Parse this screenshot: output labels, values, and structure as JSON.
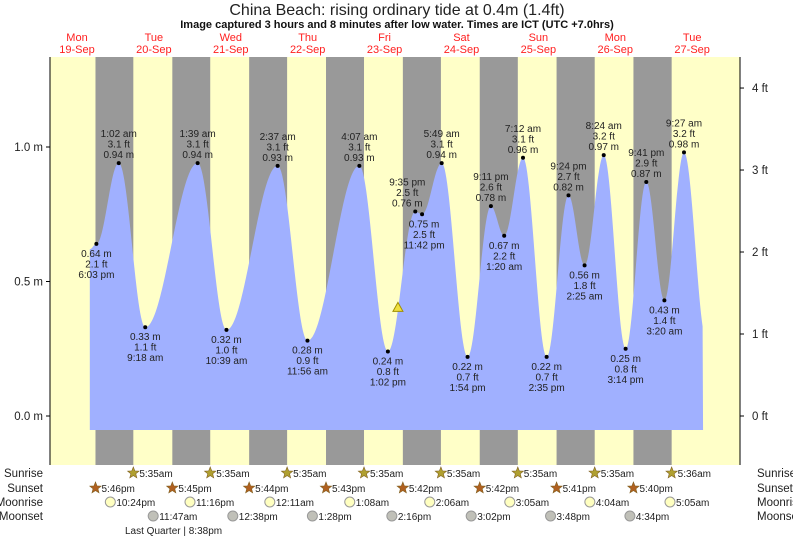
{
  "colors": {
    "day": "#ffffc8",
    "night": "#999999",
    "water": "#a0b0ff",
    "dayLabel": "#ff2020",
    "sun": "#b0a030",
    "sunset": "#b06020",
    "moonrise": "#ffffc0",
    "moonset": "#c0c0b8"
  },
  "chart_data": {
    "type": "area",
    "title": "China Beach: rising  ordinary tide at 0.4m (1.4ft)",
    "subtitle": "Image captured 3 hours and 8 minutes after low water. Times are ICT (UTC +7.0hrs)",
    "x_unit": "hours since Mon 19-Sep 00:00",
    "ylim_m": [
      -0.05,
      1.3
    ],
    "yticks_m": [
      {
        "v": 0,
        "label": "0.0 m"
      },
      {
        "v": 0.5,
        "label": "0.5 m"
      },
      {
        "v": 1.0,
        "label": "1.0 m"
      }
    ],
    "yticks_ft": [
      {
        "v": 0,
        "label": "0 ft"
      },
      {
        "v": 1,
        "label": "1 ft"
      },
      {
        "v": 2,
        "label": "2 ft"
      },
      {
        "v": 3,
        "label": "3 ft"
      },
      {
        "v": 4,
        "label": "4 ft"
      }
    ],
    "days": [
      {
        "day": "Mon",
        "date": "19-Sep"
      },
      {
        "day": "Tue",
        "date": "20-Sep"
      },
      {
        "day": "Wed",
        "date": "21-Sep"
      },
      {
        "day": "Thu",
        "date": "22-Sep"
      },
      {
        "day": "Fri",
        "date": "23-Sep"
      },
      {
        "day": "Sat",
        "date": "24-Sep"
      },
      {
        "day": "Sun",
        "date": "25-Sep"
      },
      {
        "day": "Mon",
        "date": "26-Sep"
      },
      {
        "day": "Tue",
        "date": "27-Sep"
      }
    ],
    "tides": [
      {
        "t": 18.05,
        "type": "start",
        "time": "6:03 pm",
        "ft": "2.1 ft",
        "m": "0.64 m",
        "v": 0.64
      },
      {
        "t": 25.03,
        "type": "high",
        "time": "1:02 am",
        "ft": "3.1 ft",
        "m": "0.94 m",
        "v": 0.94
      },
      {
        "t": 33.3,
        "type": "low",
        "time": "9:18 am",
        "ft": "1.1 ft",
        "m": "0.33 m",
        "v": 0.33
      },
      {
        "t": 49.65,
        "type": "high",
        "time": "1:39 am",
        "ft": "3.1 ft",
        "m": "0.94 m",
        "v": 0.94
      },
      {
        "t": 58.65,
        "type": "low",
        "time": "10:39 am",
        "ft": "1.0 ft",
        "m": "0.32 m",
        "v": 0.32
      },
      {
        "t": 74.62,
        "type": "high",
        "time": "2:37 am",
        "ft": "3.1 ft",
        "m": "0.93 m",
        "v": 0.93
      },
      {
        "t": 83.93,
        "type": "low",
        "time": "11:56 am",
        "ft": "0.9 ft",
        "m": "0.28 m",
        "v": 0.28
      },
      {
        "t": 100.12,
        "type": "high",
        "time": "4:07 am",
        "ft": "3.1 ft",
        "m": "0.93 m",
        "v": 0.93
      },
      {
        "t": 109.03,
        "type": "low",
        "time": "1:02 pm",
        "ft": "0.8 ft",
        "m": "0.24 m",
        "v": 0.24
      },
      {
        "t": 117.58,
        "type": "high",
        "time": "9:35 pm",
        "ft": "2.5 ft",
        "m": "0.76 m",
        "v": 0.76
      },
      {
        "t": 119.7,
        "type": "low",
        "time": "11:42 pm",
        "ft": "2.5 ft",
        "m": "0.75 m",
        "v": 0.75
      },
      {
        "t": 125.82,
        "type": "high",
        "time": "5:49 am",
        "ft": "3.1 ft",
        "m": "0.94 m",
        "v": 0.94
      },
      {
        "t": 133.9,
        "type": "low",
        "time": "1:54 pm",
        "ft": "0.7 ft",
        "m": "0.22 m",
        "v": 0.22
      },
      {
        "t": 141.18,
        "type": "high",
        "time": "9:11 pm",
        "ft": "2.6 ft",
        "m": "0.78 m",
        "v": 0.78
      },
      {
        "t": 145.33,
        "type": "low",
        "time": "1:20 am",
        "ft": "2.2 ft",
        "m": "0.67 m",
        "v": 0.67
      },
      {
        "t": 151.2,
        "type": "high",
        "time": "7:12 am",
        "ft": "3.1 ft",
        "m": "0.96 m",
        "v": 0.96
      },
      {
        "t": 158.58,
        "type": "low",
        "time": "2:35 pm",
        "ft": "0.7 ft",
        "m": "0.22 m",
        "v": 0.22
      },
      {
        "t": 165.4,
        "type": "high",
        "time": "9:24 pm",
        "ft": "2.7 ft",
        "m": "0.82 m",
        "v": 0.82
      },
      {
        "t": 170.42,
        "type": "low",
        "time": "2:25 am",
        "ft": "1.8 ft",
        "m": "0.56 m",
        "v": 0.56
      },
      {
        "t": 176.4,
        "type": "high",
        "time": "8:24 am",
        "ft": "3.2 ft",
        "m": "0.97 m",
        "v": 0.97
      },
      {
        "t": 183.23,
        "type": "low",
        "time": "3:14 pm",
        "ft": "0.8 ft",
        "m": "0.25 m",
        "v": 0.25
      },
      {
        "t": 189.68,
        "type": "high",
        "time": "9:41 pm",
        "ft": "2.9 ft",
        "m": "0.87 m",
        "v": 0.87
      },
      {
        "t": 195.33,
        "type": "low",
        "time": "3:20 am",
        "ft": "1.4 ft",
        "m": "0.43 m",
        "v": 0.43
      },
      {
        "t": 201.45,
        "type": "high",
        "time": "9:27 am",
        "ft": "3.2 ft",
        "m": "0.98 m",
        "v": 0.98
      }
    ],
    "now": {
      "t": 112.17,
      "v": 0.4
    },
    "rows": {
      "sunrise": "Sunrise",
      "sunset": "Sunset",
      "moonrise": "Moonrise",
      "moonset": "Moonset"
    },
    "sunrise": [
      {
        "t": 29.58,
        "label": "5:35am"
      },
      {
        "t": 53.58,
        "label": "5:35am"
      },
      {
        "t": 77.58,
        "label": "5:35am"
      },
      {
        "t": 101.58,
        "label": "5:35am"
      },
      {
        "t": 125.58,
        "label": "5:35am"
      },
      {
        "t": 149.58,
        "label": "5:35am"
      },
      {
        "t": 173.58,
        "label": "5:35am"
      },
      {
        "t": 197.6,
        "label": "5:36am"
      }
    ],
    "sunset": [
      {
        "t": 17.77,
        "label": "5:46pm"
      },
      {
        "t": 41.75,
        "label": "5:45pm"
      },
      {
        "t": 65.73,
        "label": "5:44pm"
      },
      {
        "t": 89.72,
        "label": "5:43pm"
      },
      {
        "t": 113.7,
        "label": "5:42pm"
      },
      {
        "t": 137.7,
        "label": "5:42pm"
      },
      {
        "t": 161.68,
        "label": "5:41pm"
      },
      {
        "t": 185.67,
        "label": "5:40pm"
      }
    ],
    "moonrise": [
      {
        "t": 22.4,
        "label": "10:24pm"
      },
      {
        "t": 47.27,
        "label": "11:16pm"
      },
      {
        "t": 72.18,
        "label": "12:11am"
      },
      {
        "t": 97.13,
        "label": "1:08am"
      },
      {
        "t": 122.1,
        "label": "2:06am"
      },
      {
        "t": 147.08,
        "label": "3:05am"
      },
      {
        "t": 172.07,
        "label": "4:04am"
      },
      {
        "t": 197.08,
        "label": "5:05am"
      }
    ],
    "moonset": [
      {
        "t": 35.78,
        "label": "11:47am"
      },
      {
        "t": 60.63,
        "label": "12:38pm"
      },
      {
        "t": 85.47,
        "label": "1:28pm"
      },
      {
        "t": 110.27,
        "label": "2:16pm"
      },
      {
        "t": 135.03,
        "label": "3:02pm"
      },
      {
        "t": 159.8,
        "label": "3:48pm"
      },
      {
        "t": 184.57,
        "label": "4:34pm"
      }
    ],
    "moon_phase": "Last Quarter | 8:38pm"
  }
}
